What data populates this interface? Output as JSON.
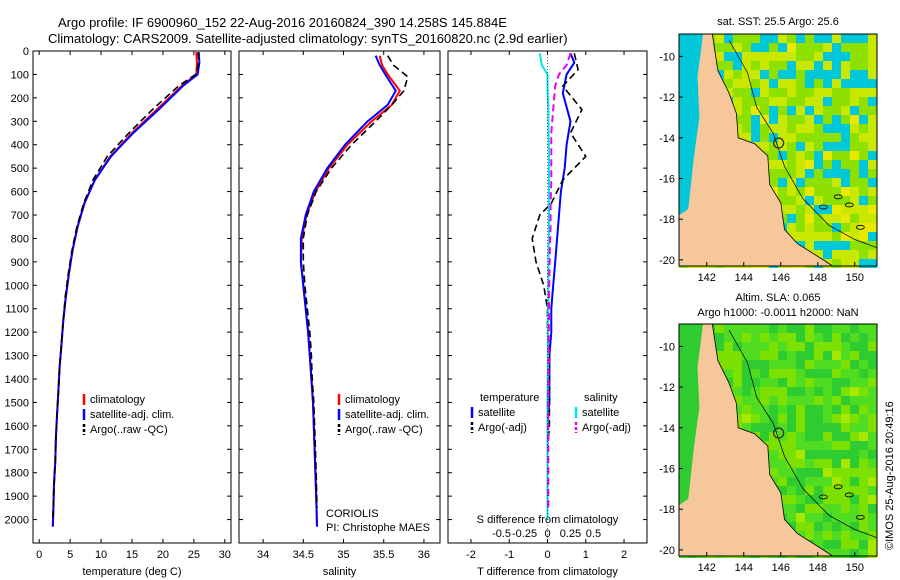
{
  "header": {
    "line1": "Argo profile: IF 6900960_152 22-Aug-2016 20160824_390 14.258S 145.884E",
    "line2": "Climatology: CARS2009. Satellite-adjusted climatology: synTS_20160820.nc (2.9d earlier)"
  },
  "side_stamp": "©IMOS 25-Aug-2016 20:49:16",
  "colors": {
    "climatology": "#ff0000",
    "satellite": "#0000ff",
    "argo": "#000000",
    "sal_satellite": "#00e5ee",
    "sal_argo": "#ee00ee",
    "land": "#f5c79a"
  },
  "chart_data": [
    {
      "type": "line",
      "panel": "temperature",
      "xlabel": "temperature (deg C)",
      "ylabel": "",
      "xlim": [
        -1,
        31
      ],
      "ylim": [
        2100,
        0
      ],
      "xticks": [
        0,
        5,
        10,
        15,
        20,
        25,
        30
      ],
      "yticks": [
        0,
        100,
        200,
        300,
        400,
        500,
        600,
        700,
        800,
        900,
        1000,
        1100,
        1200,
        1300,
        1400,
        1500,
        1600,
        1700,
        1800,
        1900,
        2000
      ],
      "legend": [
        "climatology",
        "satellite-adj. clim.",
        "Argo(..raw -QC)"
      ],
      "legend_position": "lower-center",
      "series": [
        {
          "name": "climatology",
          "x": [
            25.4,
            25.5,
            25.4,
            23.0,
            19.0,
            15.0,
            11.5,
            9.0,
            7.3,
            6.2,
            5.4,
            4.8,
            4.3,
            3.9,
            3.6,
            3.3,
            3.1,
            2.9,
            2.7,
            2.6,
            2.4,
            2.3,
            2.2
          ],
          "y": [
            5,
            50,
            100,
            150,
            250,
            350,
            450,
            550,
            650,
            750,
            850,
            950,
            1050,
            1150,
            1250,
            1350,
            1450,
            1550,
            1650,
            1750,
            1850,
            1950,
            2030
          ]
        },
        {
          "name": "satellite-adj. clim.",
          "x": [
            25.8,
            25.9,
            25.6,
            23.2,
            19.3,
            15.2,
            11.6,
            9.0,
            7.3,
            6.2,
            5.4,
            4.8,
            4.3,
            3.9,
            3.6,
            3.3,
            3.1,
            2.9,
            2.7,
            2.6,
            2.4,
            2.3,
            2.2
          ],
          "y": [
            5,
            50,
            100,
            150,
            250,
            350,
            450,
            550,
            650,
            750,
            850,
            950,
            1050,
            1150,
            1250,
            1350,
            1450,
            1550,
            1650,
            1750,
            1850,
            1950,
            2030
          ]
        },
        {
          "name": "Argo(..raw -QC)",
          "x": [
            25.7,
            25.8,
            25.3,
            22.5,
            18.3,
            14.5,
            11.0,
            8.7,
            7.2,
            6.1,
            5.3,
            4.7,
            4.2,
            3.9,
            3.6,
            3.3,
            3.1,
            2.9,
            2.7,
            2.6,
            2.4,
            2.3,
            2.2
          ],
          "y": [
            5,
            50,
            100,
            150,
            250,
            350,
            450,
            550,
            650,
            750,
            850,
            950,
            1050,
            1150,
            1250,
            1350,
            1450,
            1550,
            1650,
            1750,
            1850,
            1950,
            1990
          ]
        }
      ]
    },
    {
      "type": "line",
      "panel": "salinity",
      "xlabel": "salinity",
      "ylabel": "",
      "xlim": [
        33.7,
        36.2
      ],
      "ylim": [
        2100,
        0
      ],
      "xticks": [
        34,
        34.5,
        35,
        35.5,
        36
      ],
      "legend": [
        "climatology",
        "satellite-adj. clim.",
        "Argo(..raw -QC)"
      ],
      "legend_position": "lower-center",
      "annotation": [
        "CORIOLIS",
        "PI: Christophe MAES"
      ],
      "series": [
        {
          "name": "climatology",
          "x": [
            35.45,
            35.48,
            35.55,
            35.7,
            35.6,
            35.35,
            35.05,
            34.82,
            34.65,
            34.54,
            34.48,
            34.47,
            34.5,
            34.53,
            34.56,
            34.58,
            34.6,
            34.62,
            34.63,
            34.64,
            34.65,
            34.66,
            34.67
          ],
          "y": [
            20,
            60,
            100,
            170,
            230,
            300,
            400,
            500,
            600,
            700,
            800,
            900,
            1000,
            1100,
            1200,
            1300,
            1400,
            1500,
            1600,
            1700,
            1800,
            1900,
            2030
          ]
        },
        {
          "name": "satellite-adj. clim.",
          "x": [
            35.4,
            35.45,
            35.52,
            35.65,
            35.55,
            35.3,
            35.02,
            34.8,
            34.63,
            34.53,
            34.47,
            34.47,
            34.5,
            34.53,
            34.56,
            34.58,
            34.6,
            34.62,
            34.63,
            34.64,
            34.65,
            34.66,
            34.67
          ],
          "y": [
            20,
            60,
            100,
            170,
            230,
            300,
            400,
            500,
            600,
            700,
            800,
            900,
            1000,
            1100,
            1200,
            1300,
            1400,
            1500,
            1600,
            1700,
            1800,
            1900,
            2030
          ]
        },
        {
          "name": "Argo(..raw -QC)",
          "x": [
            35.55,
            35.62,
            35.8,
            35.75,
            35.6,
            35.4,
            35.1,
            34.85,
            34.66,
            34.55,
            34.5,
            34.5,
            34.52,
            34.55,
            34.58,
            34.6,
            34.61,
            34.63,
            34.64,
            34.65,
            34.66,
            34.67
          ],
          "y": [
            20,
            60,
            110,
            170,
            230,
            300,
            400,
            500,
            600,
            700,
            800,
            900,
            1000,
            1100,
            1200,
            1300,
            1400,
            1500,
            1600,
            1700,
            1800,
            1950
          ]
        }
      ]
    },
    {
      "type": "line",
      "panel": "differences",
      "xlabel": "T difference from climatology",
      "xlabel_top": "S difference from climatology",
      "xlim": [
        -2.6,
        2.6
      ],
      "ylim": [
        2100,
        0
      ],
      "xticks": [
        -2,
        -1,
        0,
        1,
        2
      ],
      "xticks_s": [
        "-0.5",
        "-0.25",
        "0",
        "0.25",
        "0.5"
      ],
      "legend_headers": [
        "temperature",
        "salinity"
      ],
      "legend": [
        "satellite",
        "Argo(-adj)",
        "satellite",
        "Argo(-adj)"
      ],
      "legend_position": "lower-center",
      "series": [
        {
          "name": "satellite",
          "quantity": "temperature",
          "x": [
            0.6,
            0.7,
            0.5,
            0.4,
            0.6,
            0.5,
            0.45,
            0.35,
            0.3,
            0.25,
            0.2,
            0.15,
            0.1,
            0.1,
            0.05,
            0.05,
            0.05,
            0.0,
            0.0,
            0.0,
            0.0,
            0.0
          ],
          "y": [
            10,
            50,
            100,
            180,
            300,
            400,
            500,
            600,
            700,
            800,
            900,
            1000,
            1100,
            1200,
            1300,
            1400,
            1500,
            1600,
            1700,
            1800,
            1900,
            2000
          ]
        },
        {
          "name": "Argo(-adj)",
          "quantity": "temperature",
          "x": [
            0.7,
            0.8,
            0.4,
            0.9,
            0.6,
            1.0,
            0.4,
            0.1,
            -0.2,
            -0.4,
            -0.3,
            -0.1,
            0.0,
            0.0,
            0.05,
            0.05,
            0.05,
            0.05,
            0.0,
            0.0,
            0.0
          ],
          "y": [
            10,
            80,
            150,
            250,
            350,
            450,
            550,
            650,
            700,
            800,
            900,
            1000,
            1100,
            1200,
            1300,
            1400,
            1500,
            1600,
            1700,
            1800,
            1950
          ]
        },
        {
          "name": "satellite",
          "quantity": "salinity",
          "x": [
            -0.2,
            -0.15,
            0.0,
            0.0,
            0.02,
            0.03,
            0.04,
            0.04,
            0.04,
            0.04,
            0.03,
            0.02,
            0.02,
            0.01,
            0.01,
            0.01,
            0.0,
            0.0,
            0.0,
            0.0,
            0.0
          ],
          "y": [
            10,
            60,
            100,
            150,
            250,
            350,
            450,
            550,
            650,
            750,
            850,
            950,
            1050,
            1150,
            1250,
            1350,
            1500,
            1600,
            1700,
            1800,
            2000
          ]
        },
        {
          "name": "Argo(-adj)",
          "quantity": "salinity",
          "x": [
            0.6,
            0.5,
            0.3,
            0.2,
            0.15,
            0.1,
            0.1,
            0.1,
            0.08,
            0.08,
            0.06,
            0.05,
            0.04,
            0.04,
            0.03,
            0.03,
            0.02,
            0.02,
            0.02,
            0.02,
            0.02
          ],
          "y": [
            10,
            60,
            100,
            150,
            250,
            350,
            450,
            550,
            650,
            750,
            850,
            950,
            1050,
            1150,
            1250,
            1350,
            1500,
            1600,
            1700,
            1800,
            1950
          ]
        }
      ]
    },
    {
      "type": "heatmap",
      "panel": "sst_map",
      "title": "sat. SST: 25.5  Argo: 25.6",
      "xlim": [
        140.5,
        151.2
      ],
      "ylim": [
        -20.3,
        -8.9
      ],
      "xticks": [
        142,
        144,
        146,
        148,
        150
      ],
      "yticks": [
        -10,
        -12,
        -14,
        -16,
        -18,
        -20
      ],
      "marker": {
        "lon": 145.884,
        "lat": -14.258
      }
    },
    {
      "type": "heatmap",
      "panel": "sla_map",
      "title": [
        "Altim. SLA: 0.065",
        "Argo h1000: -0.0011 h2000: NaN"
      ],
      "xlim": [
        140.5,
        151.2
      ],
      "ylim": [
        -20.3,
        -8.9
      ],
      "xticks": [
        142,
        144,
        146,
        148,
        150
      ],
      "yticks": [
        -10,
        -12,
        -14,
        -16,
        -18,
        -20
      ],
      "marker": {
        "lon": 145.884,
        "lat": -14.258
      }
    }
  ]
}
